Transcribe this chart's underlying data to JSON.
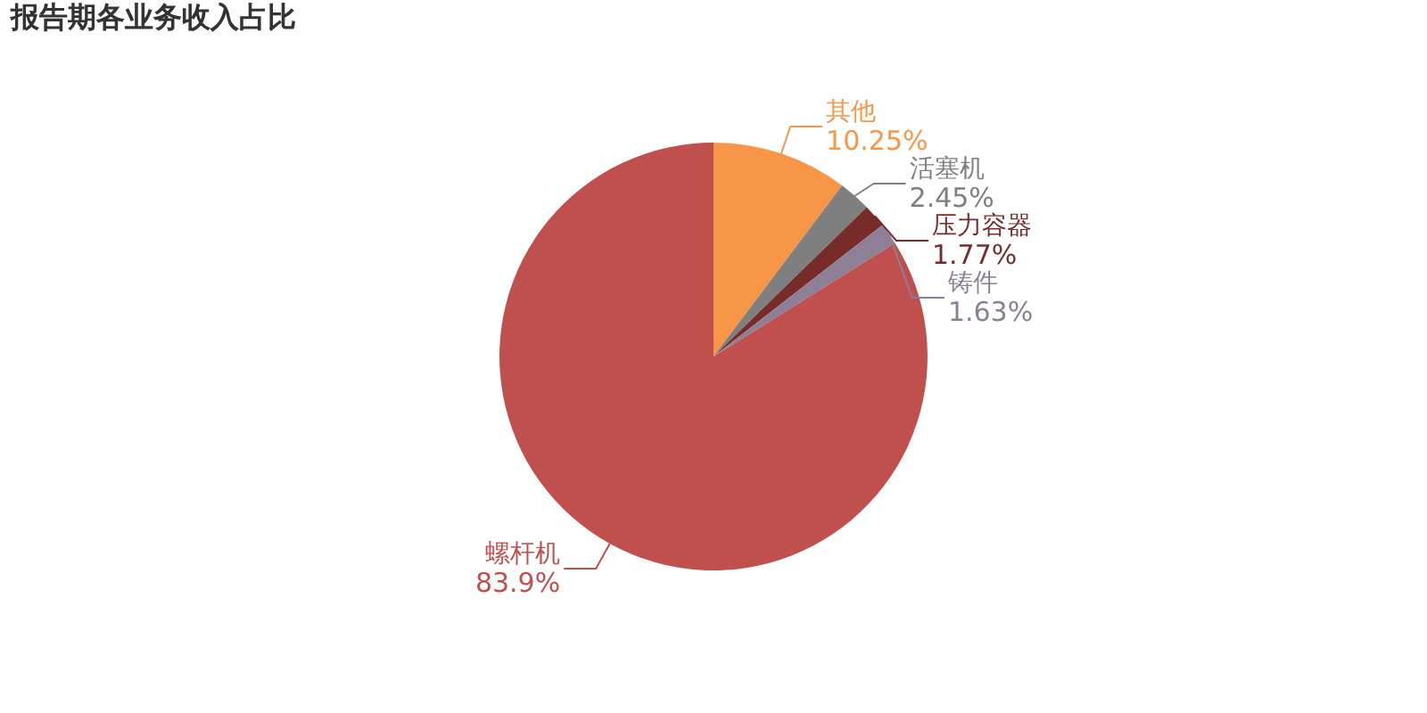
{
  "chart_data": {
    "type": "pie",
    "title": "报告期各业务收入占比",
    "categories": [
      "其他",
      "活塞机",
      "压力容器",
      "铸件",
      "螺杆机"
    ],
    "values": [
      10.25,
      2.45,
      1.77,
      1.63,
      83.9
    ],
    "value_labels": [
      "10.25%",
      "2.45%",
      "1.77%",
      "1.63%",
      "83.9%"
    ],
    "colors": [
      "#f79646",
      "#7f7f7f",
      "#772c2a",
      "#8c7f96",
      "#c0504d"
    ]
  }
}
